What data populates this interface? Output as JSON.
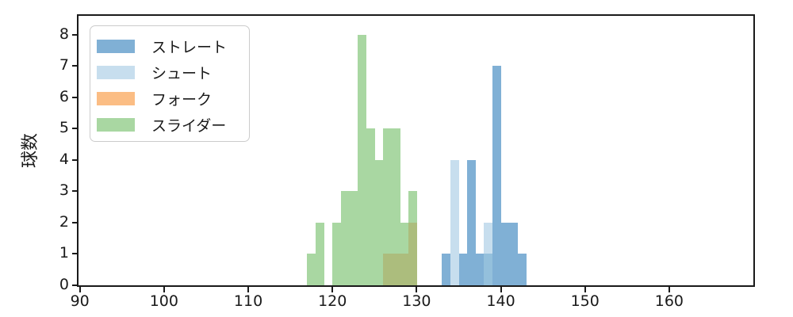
{
  "chart_data": {
    "type": "bar",
    "subtype": "overlaid-histogram",
    "title": "",
    "xlabel": "",
    "ylabel": "球数",
    "xlim": [
      89.8,
      170
    ],
    "ylim": [
      0,
      8.6
    ],
    "x_ticks": [
      90,
      100,
      110,
      120,
      130,
      140,
      150,
      160
    ],
    "y_ticks": [
      0,
      1,
      2,
      3,
      4,
      5,
      6,
      7,
      8
    ],
    "grid": "off",
    "legend_position": "upper-left",
    "bin_width": 1,
    "series": [
      {
        "name": "ストレート",
        "color": "#80B0D5",
        "bin_start": 133,
        "values": [
          1,
          0,
          1,
          4,
          1,
          1,
          7,
          2,
          2,
          1
        ]
      },
      {
        "name": "シュート",
        "color": "#C7DEEE",
        "bin_start": 134,
        "values": [
          4,
          0,
          0,
          0,
          2
        ]
      },
      {
        "name": "フォーク",
        "color": "#FBBD84",
        "bin_start": 126,
        "values": [
          1,
          1,
          1,
          2
        ]
      },
      {
        "name": "スライダー",
        "color": "#A9D7A2",
        "bin_start": 117,
        "values": [
          1,
          2,
          0,
          2,
          3,
          3,
          8,
          5,
          4,
          5,
          5,
          2,
          3
        ]
      }
    ],
    "render_layers": [
      {
        "layer_name": "slider-green-bars",
        "color": "#A9D7A2",
        "rects": [
          [
            117,
            1
          ],
          [
            118,
            2
          ],
          [
            120,
            2
          ],
          [
            121,
            3
          ],
          [
            122,
            3
          ],
          [
            123,
            8
          ],
          [
            124,
            5
          ],
          [
            125,
            4
          ],
          [
            126,
            5
          ],
          [
            127,
            5
          ],
          [
            128,
            2
          ],
          [
            129,
            3
          ]
        ]
      },
      {
        "layer_name": "fork-under-slider-overlap",
        "color": "#ACBD7D",
        "rects": [
          [
            126,
            1
          ],
          [
            127,
            1
          ],
          [
            128,
            1
          ],
          [
            129,
            2
          ]
        ]
      },
      {
        "layer_name": "straight-blue-bars",
        "color": "#80B0D5",
        "rects": [
          [
            133,
            1
          ],
          [
            135,
            1
          ],
          [
            136,
            4
          ],
          [
            137,
            1
          ],
          [
            138,
            1
          ],
          [
            139,
            7
          ],
          [
            140,
            2
          ],
          [
            141,
            2
          ],
          [
            142,
            1
          ]
        ]
      },
      {
        "layer_name": "shoot-lightblue-bars",
        "color": "#C7DEEE",
        "rects": [
          [
            134,
            4
          ],
          [
            138,
            2
          ]
        ]
      },
      {
        "layer_name": "straight-under-shoot-overlap",
        "color": "#94C0DC",
        "rects": [
          [
            138,
            1
          ]
        ]
      }
    ]
  },
  "legend": {
    "items": [
      {
        "label": "ストレート",
        "color": "#80B0D5"
      },
      {
        "label": "シュート",
        "color": "#C7DEEE"
      },
      {
        "label": "フォーク",
        "color": "#FBBD84"
      },
      {
        "label": "スライダー",
        "color": "#A9D7A2"
      }
    ]
  },
  "axis_color": "#1a1a1a"
}
